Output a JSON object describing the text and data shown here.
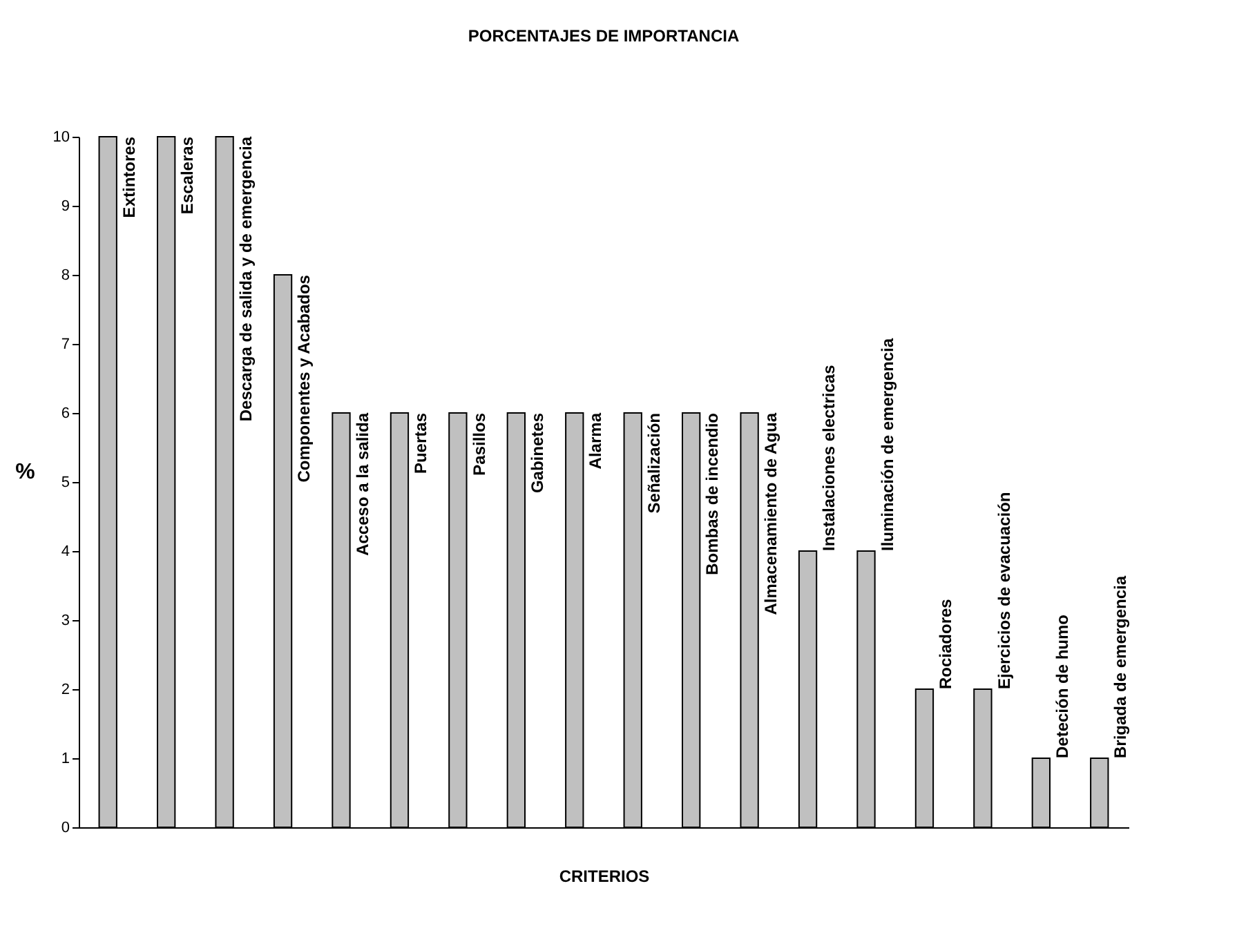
{
  "chart_data": {
    "type": "bar",
    "title": "PORCENTAJES DE IMPORTANCIA",
    "xlabel": "CRITERIOS",
    "ylabel": "%",
    "categories": [
      "Extintores",
      "Escaleras",
      "Descarga de salida y de emergencia",
      "Componentes y Acabados",
      "Acceso a la salida",
      "Puertas",
      "Pasillos",
      "Gabinetes",
      "Alarma",
      "Señalización",
      "Bombas de incendio",
      "Almacenamiento de Agua",
      "Instalaciones electricas",
      "Iluminación de emergencia",
      "Rociadores",
      "Ejercicios de evacuación",
      "Deteción de humo",
      "Brigada de emergencia"
    ],
    "values": [
      10,
      10,
      10,
      8,
      6,
      6,
      6,
      6,
      6,
      6,
      6,
      6,
      4,
      4,
      2,
      2,
      1,
      1
    ],
    "color": "#c0c0c0",
    "ylim": [
      0,
      10
    ],
    "yticks": [
      0,
      1,
      2,
      3,
      4,
      5,
      6,
      7,
      8,
      9,
      10
    ],
    "grid": false
  }
}
